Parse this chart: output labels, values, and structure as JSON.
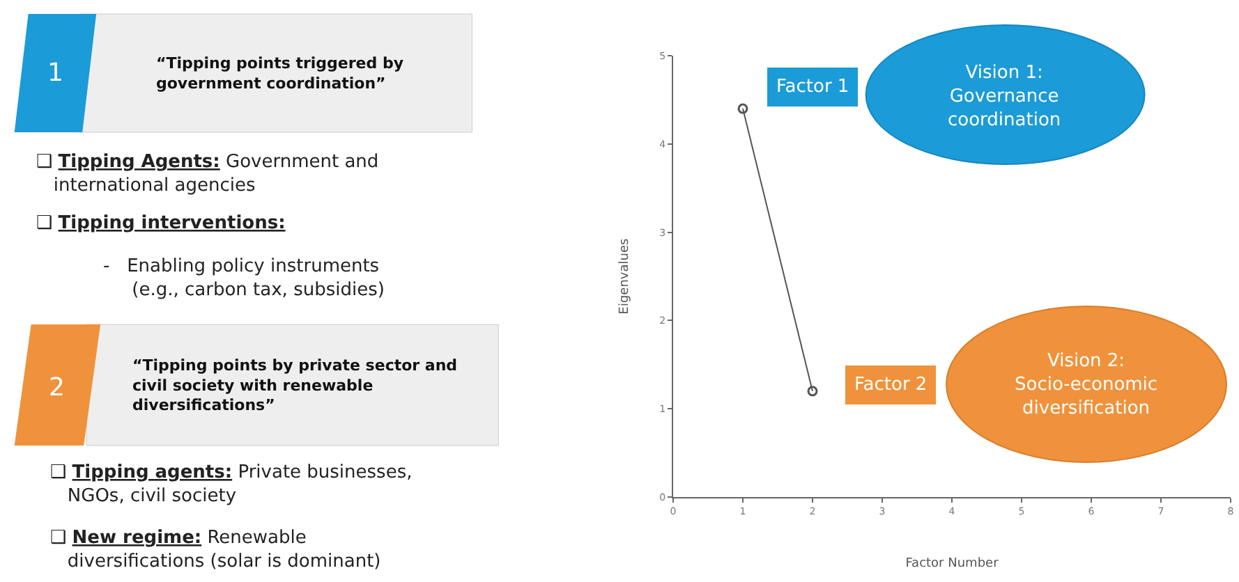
{
  "chart_data": {
    "type": "line",
    "xlabel": "Factor Number",
    "ylabel": "Eigenvalues",
    "x": [
      1,
      2
    ],
    "series": [
      {
        "color": "#555555",
        "values": [
          4.4,
          1.2
        ]
      }
    ],
    "marker": "circle",
    "line_style": "solid",
    "grid": false,
    "legend": false,
    "xlim": [
      0,
      8
    ],
    "xticks": [
      0,
      1,
      2,
      3,
      4,
      5,
      6,
      7,
      8
    ],
    "ylim": [
      0,
      5
    ],
    "yticks": [
      0,
      1,
      2,
      3,
      4,
      5
    ],
    "annotations": [
      "1",
      "“Tipping points triggered by government coordination”",
      "❑ Tipping Agents: Government and international agencies",
      "❑ Tipping interventions:",
      "- Enabling policy instruments (e.g., carbon tax, subsidies)",
      "2",
      "“Tipping points by private sector and civil society with renewable diversifications”",
      "❑ Tipping agents: Private businesses, NGOs, civil society",
      "❑ New regime: Renewable diversifications (solar is dominant)",
      "Factor 1",
      "Vision 1: Governance coordination",
      "Factor 2",
      "Vision 2: Socio-economic diversification"
    ]
  }
}
